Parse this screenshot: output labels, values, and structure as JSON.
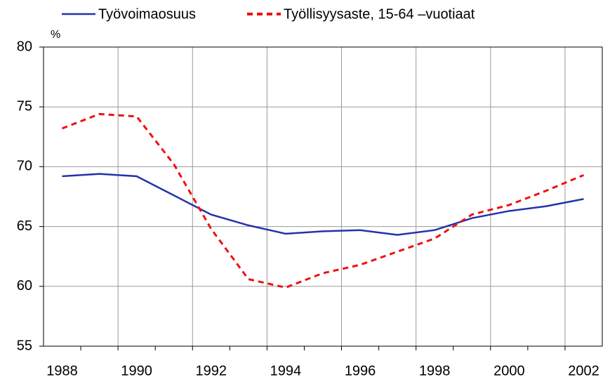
{
  "chart_data": {
    "type": "line",
    "y_label": "%",
    "categories": [
      "1988",
      null,
      "1990",
      null,
      "1992",
      null,
      "1994",
      null,
      "1996",
      null,
      "1998",
      null,
      "2000",
      null,
      "2002"
    ],
    "series": [
      {
        "name": "Työvoimaosuus",
        "color": "#2233aa",
        "dash": false,
        "values": [
          69.2,
          69.4,
          69.2,
          67.6,
          66.0,
          65.1,
          64.4,
          64.6,
          64.7,
          64.3,
          64.7,
          65.7,
          66.3,
          66.7,
          67.3
        ]
      },
      {
        "name": "Työllisyysaste, 15-64 –vuotiaat",
        "color": "#ee1111",
        "dash": true,
        "values": [
          73.2,
          74.4,
          74.2,
          70.2,
          64.8,
          60.6,
          59.9,
          61.1,
          61.8,
          62.9,
          64.0,
          66.0,
          66.8,
          68.0,
          69.3
        ]
      }
    ],
    "ylim": [
      55,
      80
    ],
    "yticks": [
      55,
      60,
      65,
      70,
      75,
      80
    ],
    "grid": true
  }
}
